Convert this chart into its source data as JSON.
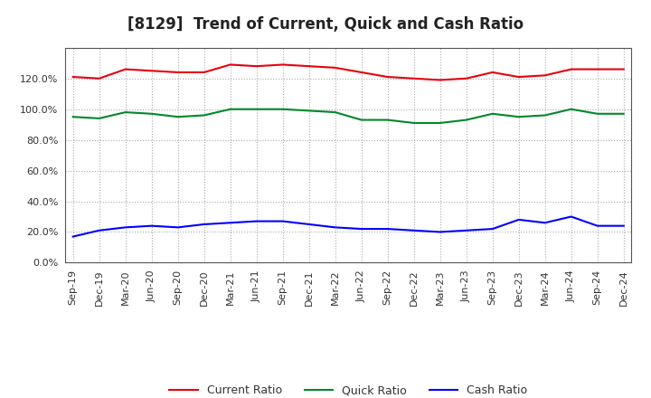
{
  "title": "[8129]  Trend of Current, Quick and Cash Ratio",
  "x_labels": [
    "Sep-19",
    "Dec-19",
    "Mar-20",
    "Jun-20",
    "Sep-20",
    "Dec-20",
    "Mar-21",
    "Jun-21",
    "Sep-21",
    "Dec-21",
    "Mar-22",
    "Jun-22",
    "Sep-22",
    "Dec-22",
    "Mar-23",
    "Jun-23",
    "Sep-23",
    "Dec-23",
    "Mar-24",
    "Jun-24",
    "Sep-24",
    "Dec-24"
  ],
  "current_ratio": [
    1.21,
    1.2,
    1.26,
    1.25,
    1.24,
    1.24,
    1.29,
    1.28,
    1.29,
    1.28,
    1.27,
    1.24,
    1.21,
    1.2,
    1.19,
    1.2,
    1.24,
    1.21,
    1.22,
    1.26,
    1.26,
    1.26
  ],
  "quick_ratio": [
    0.95,
    0.94,
    0.98,
    0.97,
    0.95,
    0.96,
    1.0,
    1.0,
    1.0,
    0.99,
    0.98,
    0.93,
    0.93,
    0.91,
    0.91,
    0.93,
    0.97,
    0.95,
    0.96,
    1.0,
    0.97,
    0.97
  ],
  "cash_ratio": [
    0.17,
    0.21,
    0.23,
    0.24,
    0.23,
    0.25,
    0.26,
    0.27,
    0.27,
    0.25,
    0.23,
    0.22,
    0.22,
    0.21,
    0.2,
    0.21,
    0.22,
    0.28,
    0.26,
    0.3,
    0.24,
    0.24
  ],
  "current_color": "#e8000d",
  "quick_color": "#00882b",
  "cash_color": "#0000ff",
  "bg_color": "#ffffff",
  "plot_bg_color": "#ffffff",
  "grid_color": "#aaaaaa",
  "ylim": [
    0.0,
    1.4
  ],
  "yticks": [
    0.0,
    0.2,
    0.4,
    0.6,
    0.8,
    1.0,
    1.2
  ],
  "line_width": 1.5,
  "title_fontsize": 12,
  "legend_fontsize": 9,
  "tick_fontsize": 8
}
